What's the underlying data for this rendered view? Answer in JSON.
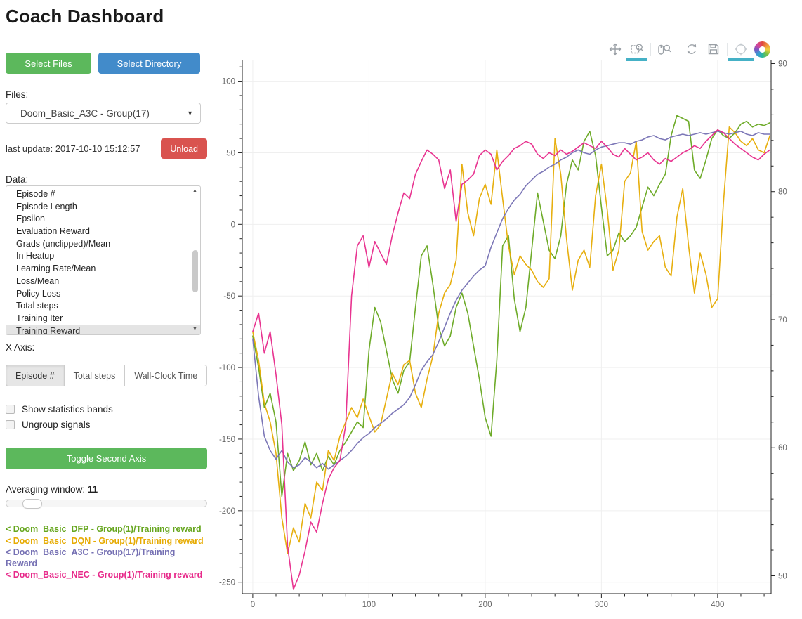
{
  "header": {
    "title": "Coach Dashboard"
  },
  "sidebar": {
    "select_files_label": "Select Files",
    "select_directory_label": "Select Directory",
    "files_label": "Files:",
    "files_selected": "Doom_Basic_A3C - Group(17)",
    "last_update": "last update: 2017-10-10 15:12:57",
    "unload_label": "Unload",
    "data_label": "Data:",
    "data_items": [
      "Episode #",
      "Episode Length",
      "Epsilon",
      "Evaluation Reward",
      "Grads (unclipped)/Mean",
      "In Heatup",
      "Learning Rate/Mean",
      "Loss/Mean",
      "Policy Loss",
      "Total steps",
      "Training Iter",
      "Training Reward"
    ],
    "data_selected": "Training Reward",
    "x_axis_label": "X Axis:",
    "x_axis_options": [
      "Episode #",
      "Total steps",
      "Wall-Clock Time"
    ],
    "x_axis_selected": "Episode #",
    "checkboxes": [
      {
        "label": "Show statistics bands",
        "checked": false
      },
      {
        "label": "Ungroup signals",
        "checked": false
      }
    ],
    "toggle_second_axis_label": "Toggle Second Axis",
    "averaging_window_label": "Averaging window:",
    "averaging_window_value": "11",
    "slider_percent": 10,
    "legend": [
      {
        "label": "< Doom_Basic_DFP - Group(1)/Training reward",
        "color": "#66a61e"
      },
      {
        "label": "< Doom_Basic_DQN - Group(1)/Training reward",
        "color": "#e6ab02"
      },
      {
        "label": "< Doom_Basic_A3C - Group(17)/Training Reward",
        "color": "#7570b3"
      },
      {
        "label": "< Doom_Basic_NEC - Group(1)/Training reward",
        "color": "#e7298a"
      }
    ]
  },
  "toolbar": {
    "tools": [
      "pan",
      "box-zoom",
      "wheel-zoom",
      "reset",
      "save",
      "hover",
      "bokeh-logo"
    ],
    "active_tools": [
      "box-zoom",
      "hover"
    ],
    "active_color": "#45b1c6"
  },
  "chart_data": {
    "type": "line",
    "title": "",
    "xlabel": "",
    "ylabel": "",
    "grid": true,
    "legend_position": "sidebar-bottom-left",
    "x_range": [
      -9,
      446
    ],
    "x_ticks": [
      0,
      100,
      200,
      300,
      400
    ],
    "y_left_range": [
      -258,
      115
    ],
    "y_left_ticks": [
      100,
      50,
      0,
      -50,
      -100,
      -150,
      -200,
      -250
    ],
    "y_right_range": [
      48.6,
      90.3
    ],
    "y_right_ticks": [
      90,
      80,
      70,
      60,
      50
    ],
    "x": [
      0,
      5,
      10,
      15,
      20,
      25,
      30,
      35,
      40,
      45,
      50,
      55,
      60,
      65,
      70,
      75,
      80,
      85,
      90,
      95,
      100,
      105,
      110,
      115,
      120,
      125,
      130,
      135,
      140,
      145,
      150,
      155,
      160,
      165,
      170,
      175,
      180,
      185,
      190,
      195,
      200,
      205,
      210,
      215,
      220,
      225,
      230,
      235,
      240,
      245,
      250,
      255,
      260,
      265,
      270,
      275,
      280,
      285,
      290,
      295,
      300,
      305,
      310,
      315,
      320,
      325,
      330,
      335,
      340,
      345,
      350,
      355,
      360,
      365,
      370,
      375,
      380,
      385,
      390,
      395,
      400,
      405,
      410,
      415,
      420,
      425,
      430,
      435,
      440,
      445
    ],
    "series": [
      {
        "name": "Doom_Basic_DFP - Group(1)/Training reward",
        "color": "#66a61e",
        "values": [
          -78,
          -100,
          -128,
          -118,
          -138,
          -190,
          -160,
          -172,
          -165,
          -152,
          -168,
          -160,
          -172,
          -162,
          -168,
          -158,
          -152,
          -145,
          -138,
          -142,
          -88,
          -58,
          -68,
          -88,
          -108,
          -118,
          -102,
          -96,
          -58,
          -22,
          -15,
          -42,
          -72,
          -85,
          -78,
          -58,
          -48,
          -62,
          -85,
          -108,
          -135,
          -148,
          -95,
          -15,
          -8,
          -52,
          -75,
          -58,
          -18,
          22,
          2,
          -18,
          -24,
          -8,
          28,
          45,
          38,
          58,
          65,
          48,
          12,
          -22,
          -18,
          -6,
          -12,
          -8,
          -2,
          12,
          26,
          20,
          28,
          35,
          62,
          76,
          74,
          72,
          38,
          32,
          45,
          60,
          66,
          62,
          60,
          64,
          70,
          72,
          68,
          70,
          69,
          71
        ]
      },
      {
        "name": "Doom_Basic_DQN - Group(1)/Training reward",
        "color": "#e6ab02",
        "values": [
          -75,
          -95,
          -125,
          -138,
          -160,
          -205,
          -230,
          -212,
          -222,
          -195,
          -205,
          -180,
          -186,
          -158,
          -165,
          -148,
          -138,
          -128,
          -135,
          -122,
          -134,
          -145,
          -140,
          -122,
          -104,
          -112,
          -98,
          -95,
          -118,
          -128,
          -108,
          -92,
          -62,
          -48,
          -42,
          -25,
          42,
          8,
          -8,
          18,
          28,
          14,
          52,
          18,
          -15,
          -35,
          -22,
          -28,
          -32,
          -40,
          -44,
          -38,
          60,
          35,
          -10,
          -46,
          -25,
          -18,
          -30,
          20,
          42,
          10,
          -32,
          -18,
          30,
          36,
          58,
          -5,
          -18,
          -12,
          -8,
          -30,
          -36,
          5,
          25,
          -15,
          -48,
          -20,
          -35,
          -58,
          -52,
          15,
          68,
          64,
          58,
          55,
          60,
          52,
          50,
          62
        ]
      },
      {
        "name": "Doom_Basic_A3C - Group(17)/Training Reward",
        "color": "#7570b3",
        "values": [
          -80,
          -120,
          -148,
          -158,
          -164,
          -158,
          -166,
          -170,
          -168,
          -163,
          -166,
          -170,
          -167,
          -171,
          -168,
          -165,
          -162,
          -158,
          -153,
          -149,
          -146,
          -142,
          -139,
          -136,
          -132,
          -129,
          -126,
          -121,
          -112,
          -102,
          -96,
          -91,
          -82,
          -72,
          -62,
          -53,
          -46,
          -41,
          -36,
          -32,
          -29,
          -16,
          -6,
          4,
          11,
          17,
          21,
          27,
          31,
          35,
          37,
          40,
          42,
          45,
          47,
          50,
          52,
          50,
          49,
          52,
          54,
          55,
          56,
          57,
          57,
          56,
          58,
          59,
          61,
          62,
          60,
          59,
          61,
          62,
          63,
          62,
          63,
          64,
          63,
          64,
          65,
          64,
          63,
          64,
          65,
          63,
          62,
          64,
          63,
          63
        ]
      },
      {
        "name": "Doom_Basic_NEC - Group(1)/Training reward",
        "color": "#e7298a",
        "values": [
          -75,
          -62,
          -90,
          -75,
          -105,
          -140,
          -225,
          -255,
          -245,
          -228,
          -208,
          -215,
          -195,
          -178,
          -170,
          -165,
          -140,
          -50,
          -15,
          -8,
          -30,
          -12,
          -20,
          -28,
          -8,
          8,
          22,
          18,
          35,
          44,
          52,
          49,
          45,
          25,
          38,
          2,
          28,
          31,
          35,
          48,
          52,
          49,
          38,
          44,
          48,
          53,
          55,
          58,
          56,
          49,
          46,
          50,
          48,
          52,
          49,
          51,
          54,
          57,
          55,
          53,
          58,
          54,
          49,
          47,
          53,
          49,
          45,
          47,
          50,
          45,
          42,
          46,
          44,
          47,
          50,
          52,
          55,
          53,
          58,
          62,
          66,
          64,
          60,
          56,
          53,
          50,
          47,
          45,
          49,
          52
        ]
      }
    ]
  }
}
